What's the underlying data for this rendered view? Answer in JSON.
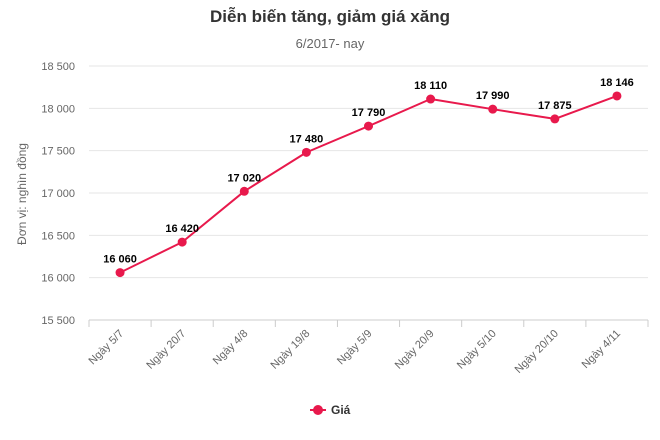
{
  "chart_data": {
    "type": "line",
    "title": "Diễn biến tăng, giảm giá xăng",
    "subtitle": "6/2017- nay",
    "ylabel": "Đơn vị: nghìn đồng",
    "xlabel": "",
    "categories": [
      "Ngày 5/7",
      "Ngày 20/7",
      "Ngày 4/8",
      "Ngày 19/8",
      "Ngày 5/9",
      "Ngày 20/9",
      "Ngày 5/10",
      "Ngày 20/10",
      "Ngày 4/11"
    ],
    "series": [
      {
        "name": "Giá",
        "values": [
          16060,
          16420,
          17020,
          17480,
          17790,
          18110,
          17990,
          17875,
          18146
        ],
        "data_labels": [
          "16 060",
          "16 420",
          "17 020",
          "17 480",
          "17 790",
          "18 110",
          "17 990",
          "17 875",
          "18 146"
        ],
        "color": "#e8194c"
      }
    ],
    "ylim": [
      15500,
      18500
    ],
    "yticks": [
      15500,
      16000,
      16500,
      17000,
      17500,
      18000,
      18500
    ],
    "ytick_labels": [
      "15 500",
      "16 000",
      "16 500",
      "17 000",
      "17 500",
      "18 000",
      "18 500"
    ],
    "grid": true,
    "legend_position": "bottom"
  }
}
